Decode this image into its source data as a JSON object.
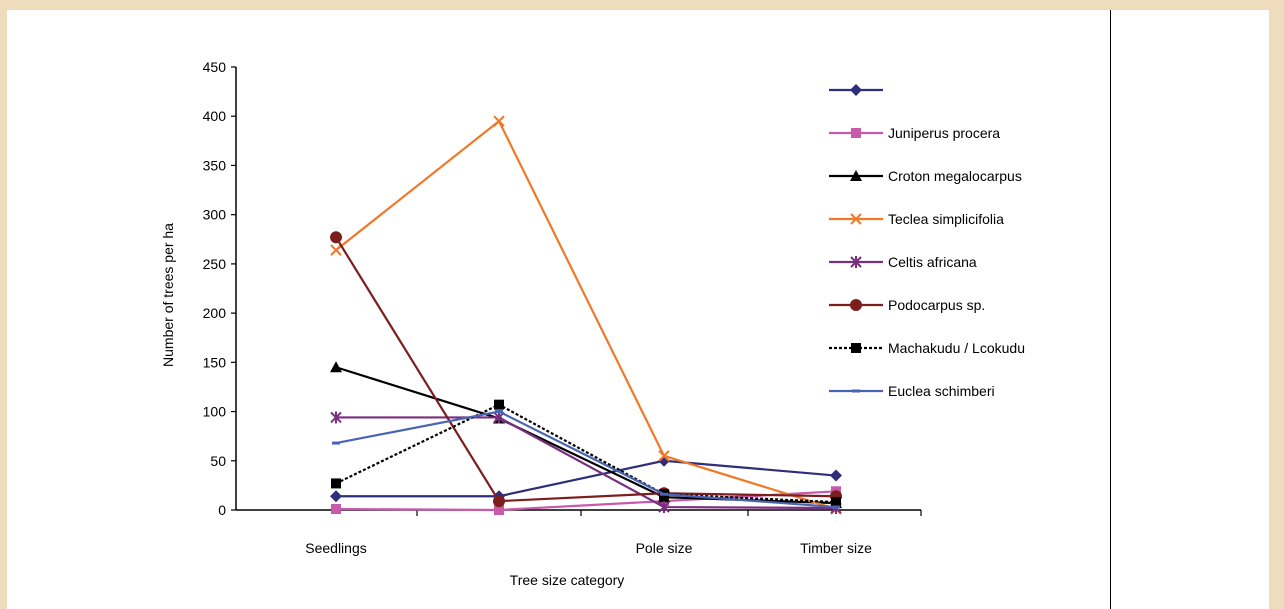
{
  "chart_data": {
    "type": "line",
    "title": "",
    "xlabel": "Tree size category",
    "ylabel": "Number of trees per ha",
    "ylim": [
      0,
      450
    ],
    "yticks": [
      0,
      50,
      100,
      150,
      200,
      250,
      300,
      350,
      400,
      450
    ],
    "categories": [
      "Seedlings",
      "",
      "Pole size",
      "Timber size"
    ],
    "legend_position": "right",
    "grid": false,
    "series": [
      {
        "name": "",
        "color": "#2e2e7a",
        "marker": "diamond",
        "dash": false,
        "values": [
          14,
          14,
          50,
          35
        ]
      },
      {
        "name": "Juniperus procera",
        "color": "#c85aaa",
        "marker": "square",
        "dash": false,
        "values": [
          1,
          0,
          9,
          19
        ]
      },
      {
        "name": "Croton megalocarpus",
        "color": "#000000",
        "marker": "triangle",
        "dash": false,
        "values": [
          145,
          93,
          13,
          7
        ]
      },
      {
        "name": "Teclea simplicifolia",
        "color": "#f07828",
        "marker": "x",
        "dash": false,
        "values": [
          264,
          395,
          55,
          1
        ]
      },
      {
        "name": "Celtis africana",
        "color": "#7a2e7e",
        "marker": "star",
        "dash": false,
        "values": [
          94,
          94,
          3,
          2
        ]
      },
      {
        "name": "Podocarpus sp.",
        "color": "#7d1e1e",
        "marker": "circle",
        "dash": false,
        "values": [
          277,
          9,
          17,
          14
        ]
      },
      {
        "name": "Machakudu / Lcokudu",
        "color": "#000000",
        "marker": "square",
        "dash": true,
        "values": [
          27,
          107,
          16,
          8
        ]
      },
      {
        "name": "Euclea schimberi",
        "color": "#4a64b4",
        "marker": "dash",
        "dash": false,
        "values": [
          68,
          100,
          16,
          3
        ]
      }
    ]
  }
}
